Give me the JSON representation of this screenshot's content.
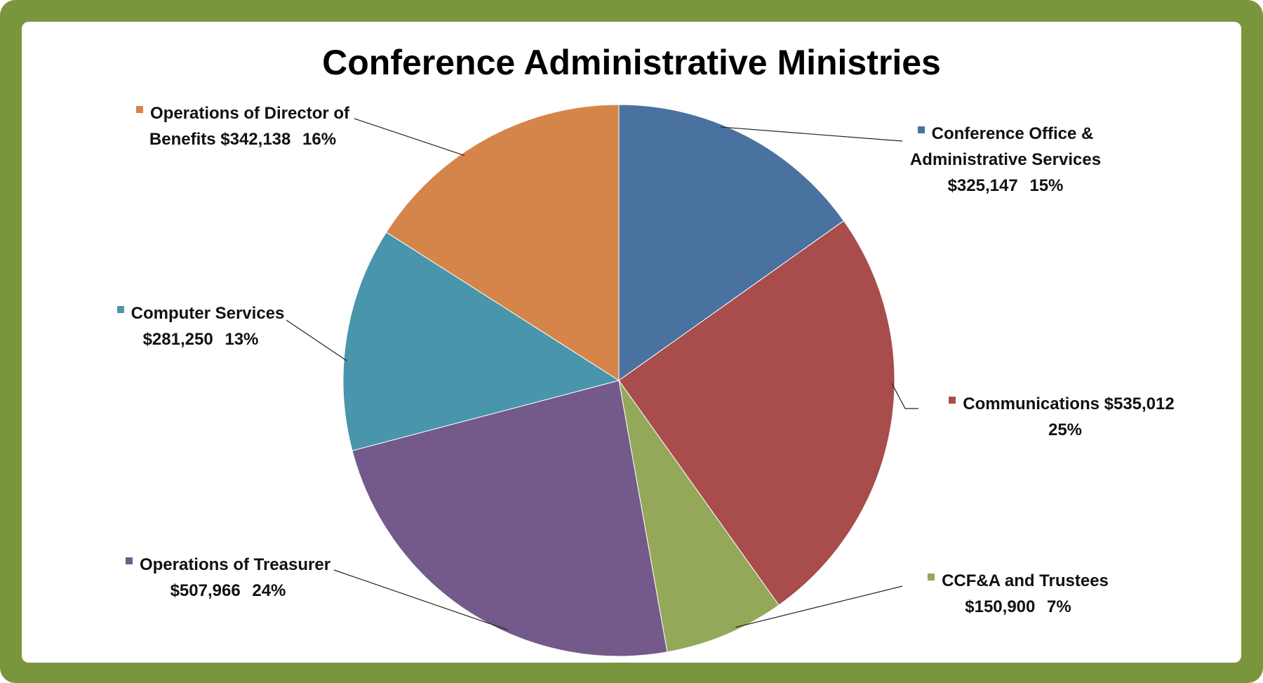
{
  "chart_data": {
    "type": "pie",
    "title": "Conference Administrative Ministries",
    "categories": [
      "Conference Office & Administrative Services",
      "Communications",
      "CCF&A and Trustees",
      "Operations of Treasurer",
      "Computer Services",
      "Operations of Director of Benefits"
    ],
    "values": [
      325147,
      535012,
      150900,
      507966,
      281250,
      342138
    ],
    "value_labels": [
      "$325,147",
      "$535,012",
      "$150,900",
      "$507,966",
      "$281,250",
      "$342,138"
    ],
    "percents": [
      15,
      25,
      7,
      24,
      13,
      16
    ],
    "percent_labels": [
      "15%",
      "25%",
      "7%",
      "24%",
      "13%",
      "16%"
    ],
    "colors": [
      "#4a72a0",
      "#a84c4c",
      "#94a85a",
      "#735a8a",
      "#4995ab",
      "#d6854a"
    ]
  }
}
